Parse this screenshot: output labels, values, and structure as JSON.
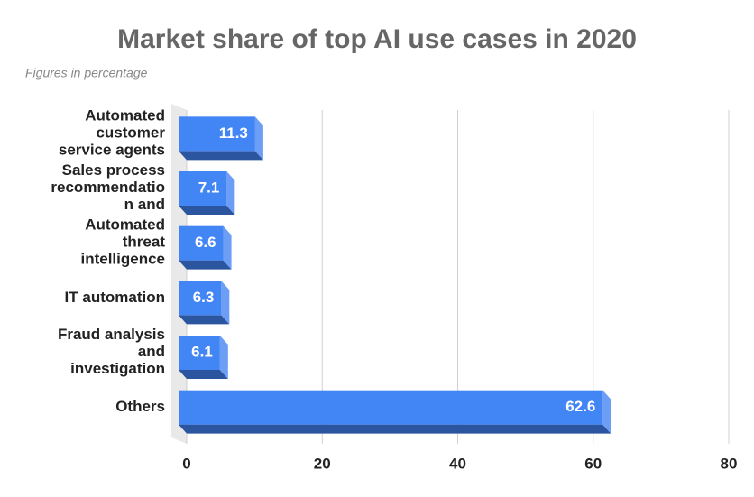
{
  "chart_data": {
    "type": "bar",
    "orientation": "horizontal",
    "title": "Market share of top AI use cases in 2020",
    "subtitle": "Figures in percentage",
    "categories": [
      "Automated\ncustomer\nservice agents",
      "Sales process\nrecommendatio\nn and",
      "Automated\nthreat\nintelligence",
      "IT automation",
      "Fraud analysis\nand\ninvestigation",
      "Others"
    ],
    "values": [
      11.3,
      7.1,
      6.6,
      6.3,
      6.1,
      62.6
    ],
    "color": "#4285f4",
    "xlim": [
      0,
      80
    ],
    "xticks": [
      0,
      20,
      40,
      60,
      80
    ],
    "grid": true
  }
}
